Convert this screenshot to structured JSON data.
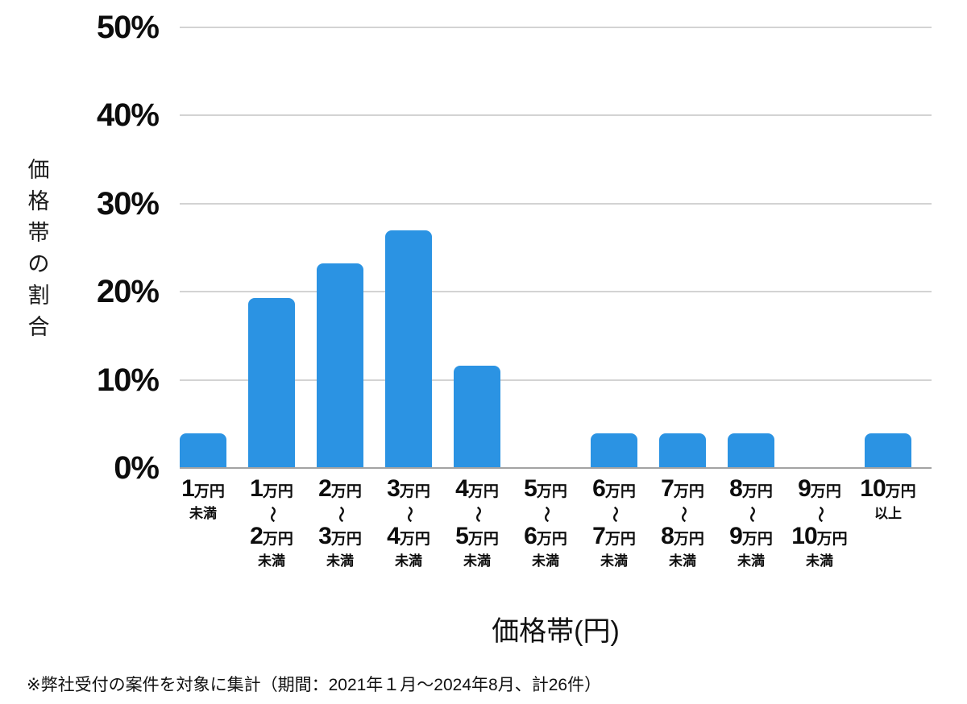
{
  "chart_data": {
    "type": "bar",
    "title": "",
    "ylabel": "価格帯の割合",
    "xlabel": "価格帯(円)",
    "ylim": [
      0,
      50
    ],
    "yticks": [
      "50%",
      "40%",
      "30%",
      "20%",
      "10%",
      "0%"
    ],
    "grid": "horizontal",
    "legend": "none",
    "bar_color": "#2B93E3",
    "categories": [
      {
        "line1": {
          "num": "1",
          "unit": "万円"
        },
        "tilde": null,
        "line2": null,
        "suffix": "未満"
      },
      {
        "line1": {
          "num": "1",
          "unit": "万円"
        },
        "tilde": "〜",
        "line2": {
          "num": "2",
          "unit": "万円"
        },
        "suffix": "未満"
      },
      {
        "line1": {
          "num": "2",
          "unit": "万円"
        },
        "tilde": "〜",
        "line2": {
          "num": "3",
          "unit": "万円"
        },
        "suffix": "未満"
      },
      {
        "line1": {
          "num": "3",
          "unit": "万円"
        },
        "tilde": "〜",
        "line2": {
          "num": "4",
          "unit": "万円"
        },
        "suffix": "未満"
      },
      {
        "line1": {
          "num": "4",
          "unit": "万円"
        },
        "tilde": "〜",
        "line2": {
          "num": "5",
          "unit": "万円"
        },
        "suffix": "未満"
      },
      {
        "line1": {
          "num": "5",
          "unit": "万円"
        },
        "tilde": "〜",
        "line2": {
          "num": "6",
          "unit": "万円"
        },
        "suffix": "未満"
      },
      {
        "line1": {
          "num": "6",
          "unit": "万円"
        },
        "tilde": "〜",
        "line2": {
          "num": "7",
          "unit": "万円"
        },
        "suffix": "未満"
      },
      {
        "line1": {
          "num": "7",
          "unit": "万円"
        },
        "tilde": "〜",
        "line2": {
          "num": "8",
          "unit": "万円"
        },
        "suffix": "未満"
      },
      {
        "line1": {
          "num": "8",
          "unit": "万円"
        },
        "tilde": "〜",
        "line2": {
          "num": "9",
          "unit": "万円"
        },
        "suffix": "未満"
      },
      {
        "line1": {
          "num": "9",
          "unit": "万円"
        },
        "tilde": "〜",
        "line2": {
          "num": "10",
          "unit": "万円"
        },
        "suffix": "未満"
      },
      {
        "line1": {
          "num": "10",
          "unit": "万円"
        },
        "tilde": null,
        "line2": null,
        "suffix": "以上"
      }
    ],
    "values": [
      3.8,
      19.2,
      23.1,
      26.9,
      11.5,
      0,
      3.8,
      3.8,
      3.8,
      0,
      3.8
    ],
    "footnote": "※弊社受付の案件を対象に集計（期間：2021年１月～2024年8月、計26件）"
  }
}
